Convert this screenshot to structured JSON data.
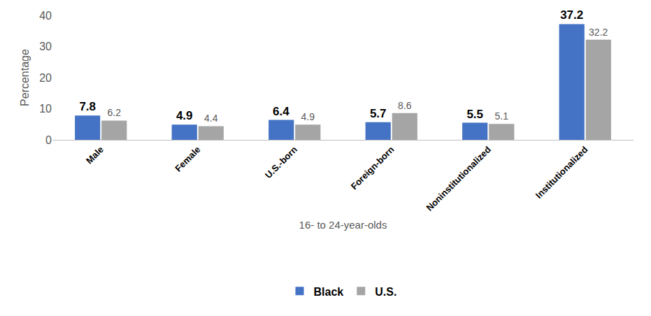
{
  "chart_data": {
    "type": "bar",
    "x_label": "16- to 24-year-olds",
    "y_label": "Percentage",
    "categories": [
      "Male",
      "Female",
      "U.S.-born",
      "Foreign-born",
      "Noninstitutionalized",
      "Institutionalized"
    ],
    "series": [
      {
        "name": "Black",
        "color": "#4472c4",
        "values": [
          7.8,
          4.9,
          6.4,
          5.7,
          5.5,
          37.2
        ]
      },
      {
        "name": "U.S.",
        "color": "#a5a5a5",
        "values": [
          6.2,
          4.4,
          4.9,
          8.6,
          5.1,
          32.2
        ]
      }
    ],
    "ylim": [
      0,
      40
    ],
    "yticks": [
      0,
      10,
      20,
      30,
      40
    ],
    "grid": false,
    "legend": "bottom",
    "data_labels": true
  }
}
